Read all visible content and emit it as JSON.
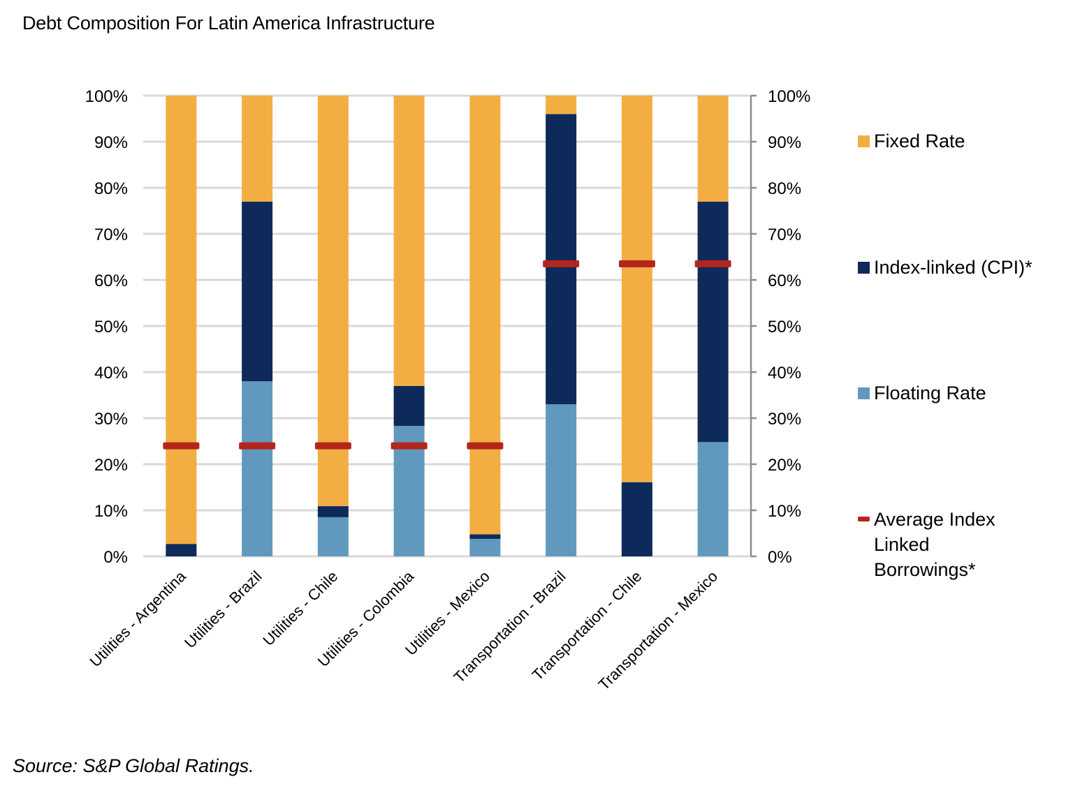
{
  "chart_data": {
    "type": "bar",
    "stacked": true,
    "title": "Debt Composition For Latin America Infrastructure",
    "source": "Source: S&P Global Ratings.",
    "xlabel": "",
    "ylabel": "",
    "ylim": [
      0,
      100
    ],
    "yticks": [
      "0%",
      "10%",
      "20%",
      "30%",
      "40%",
      "50%",
      "60%",
      "70%",
      "80%",
      "90%",
      "100%"
    ],
    "secondary_yticks": [
      "0%",
      "10%",
      "20%",
      "30%",
      "40%",
      "50%",
      "60%",
      "70%",
      "80%",
      "90%",
      "100%"
    ],
    "grid": true,
    "legend_position": "right",
    "categories": [
      "Utilities - Argentina",
      "Utilities - Brazil",
      "Utilities - Chile",
      "Utilities - Colombia",
      "Utilities - Mexico",
      "Transportation - Brazil",
      "Transportation - Chile",
      "Transportation - Mexico"
    ],
    "series": [
      {
        "name": "Floating Rate",
        "color": "#6199be",
        "values": [
          0,
          38,
          8.5,
          28.3,
          3.8,
          33,
          0,
          24.8
        ]
      },
      {
        "name": "Index-linked (CPI)*",
        "color": "#0e2a5b",
        "values": [
          2.7,
          39,
          2.4,
          8.7,
          1.0,
          63,
          16.1,
          52.2
        ]
      },
      {
        "name": "Fixed Rate",
        "color": "#f2ae42",
        "values": [
          97.3,
          23,
          89.1,
          63,
          95.2,
          4,
          83.9,
          23
        ]
      }
    ],
    "average_line": {
      "name": "Average Index Linked Borrowings*",
      "color": "#b3261c",
      "values": [
        24,
        24,
        24,
        24,
        24,
        63.5,
        63.5,
        63.5
      ]
    },
    "legend": [
      {
        "label": "Fixed Rate",
        "color": "#f2ae42",
        "marker": "square"
      },
      {
        "label": "Index-linked (CPI)*",
        "color": "#0e2a5b",
        "marker": "square"
      },
      {
        "label": "Floating Rate",
        "color": "#6199be",
        "marker": "square"
      },
      {
        "label_lines": [
          "Average Index",
          "Linked",
          "Borrowings*"
        ],
        "color": "#b3261c",
        "marker": "dash"
      }
    ]
  }
}
